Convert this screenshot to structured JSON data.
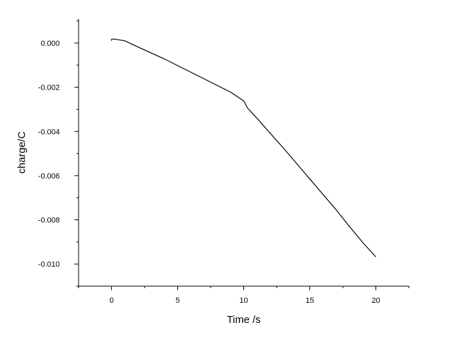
{
  "chart_data": {
    "type": "line",
    "title": "",
    "xlabel": "Time /s",
    "ylabel": "charge/C",
    "xlim": [
      -2.5,
      22.5
    ],
    "ylim": [
      -0.011,
      0.0011
    ],
    "x_ticks": [
      0,
      5,
      10,
      15,
      20
    ],
    "x_tick_labels": [
      "0",
      "5",
      "10",
      "15",
      "20"
    ],
    "y_ticks": [
      0.0,
      -0.002,
      -0.004,
      -0.006,
      -0.008,
      -0.01
    ],
    "y_tick_labels": [
      "0.000",
      "-0.002",
      "-0.004",
      "-0.006",
      "-0.008",
      "-0.010"
    ],
    "grid": false,
    "series": [
      {
        "name": "",
        "color": "#000000",
        "x": [
          0.0,
          0.0,
          0.2,
          0.5,
          1.0,
          2.0,
          3.0,
          4.0,
          5.0,
          6.0,
          7.0,
          8.0,
          9.0,
          10.0,
          10.3,
          11.0,
          12.0,
          13.0,
          14.0,
          15.0,
          16.0,
          17.0,
          18.0,
          19.0,
          20.0
        ],
        "y": [
          0.0001,
          0.00018,
          0.00018,
          0.00015,
          0.0001,
          -0.00018,
          -0.00045,
          -0.00072,
          -0.00102,
          -0.00132,
          -0.00162,
          -0.00192,
          -0.00222,
          -0.00262,
          -0.00295,
          -0.0034,
          -0.00408,
          -0.00475,
          -0.00545,
          -0.00615,
          -0.00685,
          -0.00755,
          -0.0083,
          -0.00902,
          -0.00968
        ]
      }
    ]
  }
}
